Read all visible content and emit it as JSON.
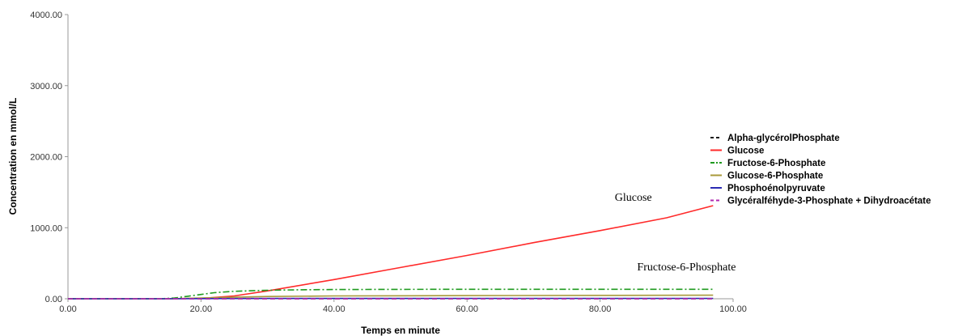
{
  "chart_data": {
    "type": "line",
    "title": "",
    "xlabel": "Temps en minute",
    "ylabel": "Concentration en mmol/L",
    "xlim": [
      0,
      100
    ],
    "ylim": [
      0,
      4000
    ],
    "x_ticks": [
      "0.00",
      "20.00",
      "40.00",
      "60.00",
      "80.00",
      "100.00"
    ],
    "y_ticks": [
      "0.00",
      "1000.00",
      "2000.00",
      "3000.00",
      "4000.00"
    ],
    "grid": false,
    "legend_position": "right",
    "series": [
      {
        "name": "Alpha-glycérolPhosphate",
        "color": "#1a1a1a",
        "dash": "dashed",
        "x": [
          0,
          15,
          20,
          30,
          40,
          60,
          80,
          97
        ],
        "y": [
          0,
          0,
          0,
          0,
          0,
          0,
          0,
          0
        ]
      },
      {
        "name": "Glucose",
        "color": "#ff2a2a",
        "dash": "solid",
        "x": [
          0,
          15,
          20,
          25,
          30,
          40,
          50,
          60,
          70,
          80,
          90,
          97
        ],
        "y": [
          0,
          0,
          5,
          40,
          110,
          270,
          440,
          610,
          790,
          960,
          1140,
          1310
        ]
      },
      {
        "name": "Fructose-6-Phosphate",
        "color": "#1f9a1f",
        "dash": "dashdot",
        "x": [
          0,
          14,
          16,
          18,
          20,
          22,
          25,
          30,
          35,
          40,
          50,
          60,
          80,
          97
        ],
        "y": [
          0,
          0,
          10,
          35,
          60,
          85,
          105,
          120,
          127,
          130,
          132,
          133,
          133,
          133
        ]
      },
      {
        "name": "Glucose-6-Phosphate",
        "color": "#a89a3a",
        "dash": "solid",
        "x": [
          0,
          15,
          20,
          25,
          30,
          40,
          60,
          80,
          97
        ],
        "y": [
          0,
          0,
          10,
          22,
          32,
          40,
          45,
          48,
          50
        ]
      },
      {
        "name": "Phosphoénolpyruvate",
        "color": "#2b2bb3",
        "dash": "solid",
        "x": [
          0,
          15,
          20,
          30,
          40,
          60,
          80,
          97
        ],
        "y": [
          0,
          0,
          2,
          4,
          5,
          6,
          6,
          6
        ]
      },
      {
        "name": "Glycéralféhyde-3-Phosphate + Dihydroacétate",
        "color": "#b02ab0",
        "dash": "dashed",
        "x": [
          0,
          15,
          20,
          30,
          40,
          60,
          80,
          97
        ],
        "y": [
          0,
          0,
          0,
          1,
          1,
          1,
          1,
          1
        ]
      }
    ],
    "annotations": [
      {
        "text": "Glucose",
        "x": 85,
        "y": 1380
      },
      {
        "text": "Fructose-6-Phosphate",
        "x": 93,
        "y": 400
      }
    ]
  }
}
